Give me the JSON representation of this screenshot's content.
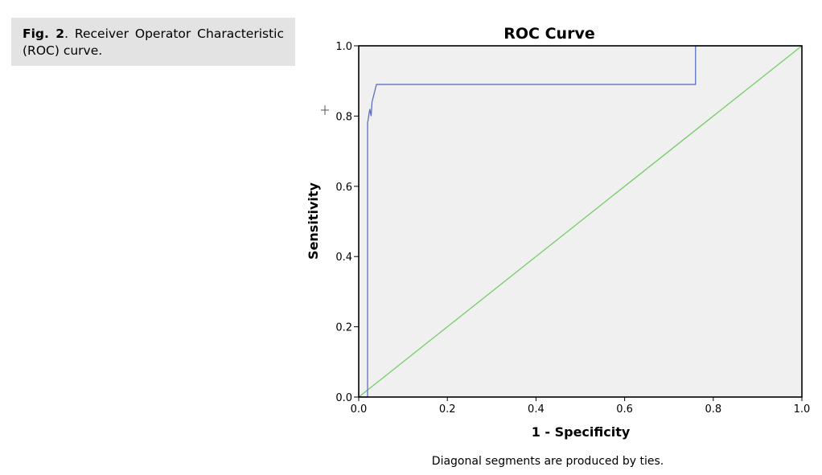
{
  "caption": {
    "label": "Fig. 2",
    "separator": ".",
    "text": " Receiver Operator Characteristic (ROC) curve."
  },
  "chart_data": {
    "type": "line",
    "title": "ROC Curve",
    "xlabel": "1 - Specificity",
    "ylabel": "Sensitivity",
    "xlim": [
      0.0,
      1.0
    ],
    "ylim": [
      0.0,
      1.0
    ],
    "xticks": [
      "0.0",
      "0.2",
      "0.4",
      "0.6",
      "0.8",
      "1.0"
    ],
    "yticks": [
      "0.0",
      "0.2",
      "0.4",
      "0.6",
      "0.8",
      "1.0"
    ],
    "grid": false,
    "footnote": "Diagonal segments are produced by ties.",
    "series": [
      {
        "color": "#5a6fc2",
        "x": [
          0.0,
          0.02,
          0.02,
          0.025,
          0.028,
          0.03,
          0.04,
          0.76,
          0.76,
          1.0
        ],
        "y": [
          0.0,
          0.0,
          0.78,
          0.82,
          0.8,
          0.84,
          0.89,
          0.89,
          1.0,
          1.0
        ]
      },
      {
        "color": "#77cc6a",
        "x": [
          0.0,
          1.0
        ],
        "y": [
          0.0,
          1.0
        ]
      }
    ],
    "plot_background": "#f0f0f0"
  }
}
